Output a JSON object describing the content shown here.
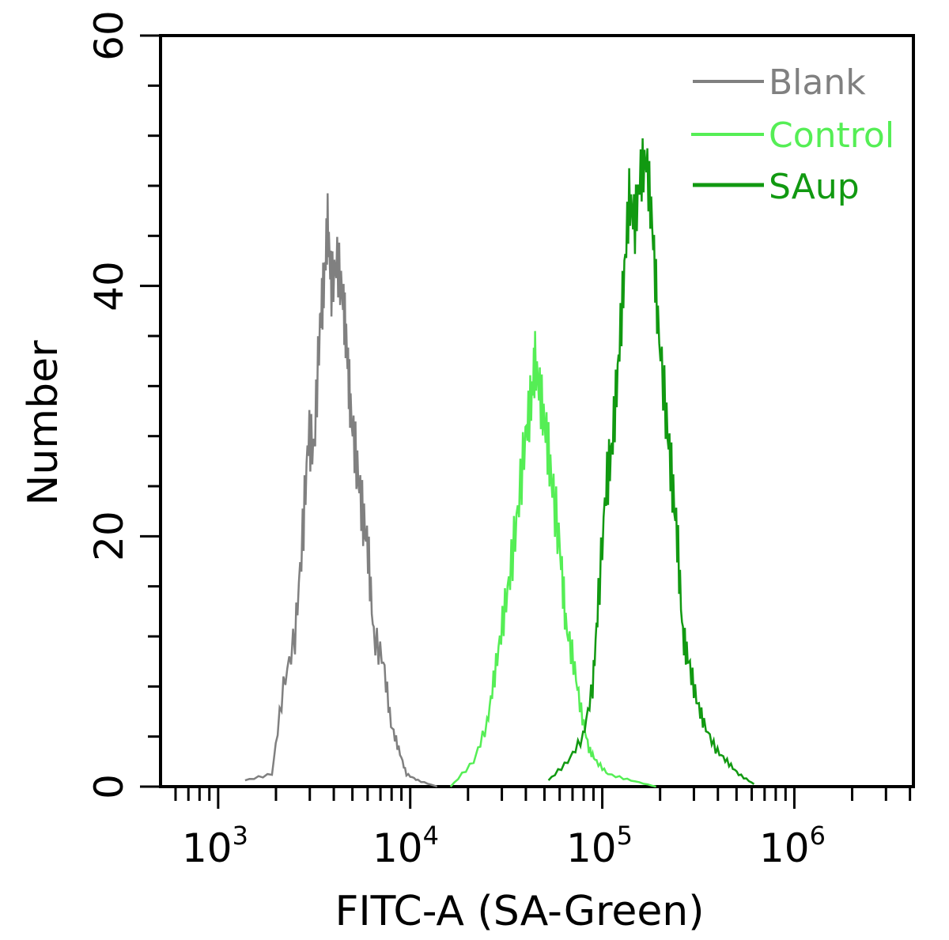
{
  "chart_data": {
    "type": "line",
    "title": "",
    "xlabel": "FITC-A (SA-Green)",
    "ylabel": "Number",
    "x_scale": "log",
    "xlim_log10": [
      2.7,
      6.62
    ],
    "ylim": [
      0,
      60
    ],
    "xticks": [
      {
        "base": "10",
        "exp": "3"
      },
      {
        "base": "10",
        "exp": "4"
      },
      {
        "base": "10",
        "exp": "5"
      },
      {
        "base": "10",
        "exp": "6"
      }
    ],
    "xtick_values_log10": [
      3,
      4,
      5,
      6
    ],
    "yticks": [
      "0",
      "20",
      "40",
      "60"
    ],
    "ytick_values": [
      0,
      20,
      40,
      60
    ],
    "grid": false,
    "legend_position": "top-right",
    "series": [
      {
        "name": "Blank",
        "color": "#808080",
        "log10_x": [
          3.14,
          3.28,
          3.34,
          3.4,
          3.44,
          3.47,
          3.5,
          3.53,
          3.55,
          3.57,
          3.59,
          3.62,
          3.65,
          3.67,
          3.69,
          3.72,
          3.75,
          3.78,
          3.81,
          3.86,
          3.9,
          3.94,
          3.98,
          4.04,
          4.14
        ],
        "y": [
          0.5,
          1,
          8,
          12,
          20,
          28,
          27,
          37,
          40,
          45,
          40,
          42,
          39,
          35,
          30,
          26,
          22,
          19,
          12,
          10,
          5,
          3,
          1,
          0.5,
          0
        ]
      },
      {
        "name": "Control",
        "color": "#55ee55",
        "log10_x": [
          4.21,
          4.33,
          4.4,
          4.44,
          4.48,
          4.52,
          4.56,
          4.6,
          4.63,
          4.65,
          4.68,
          4.71,
          4.74,
          4.78,
          4.81,
          4.85,
          4.89,
          4.93,
          4.97,
          5.03,
          5.15,
          5.28
        ],
        "y": [
          0,
          2,
          5,
          9,
          13,
          17,
          22,
          28,
          31,
          34,
          31,
          28,
          24,
          19,
          13,
          10,
          6,
          3,
          2,
          1,
          0.5,
          0
        ]
      },
      {
        "name": "SAup",
        "color": "#119911",
        "log10_x": [
          4.72,
          4.82,
          4.9,
          4.95,
          4.98,
          5.02,
          5.05,
          5.08,
          5.11,
          5.14,
          5.17,
          5.2,
          5.23,
          5.26,
          5.29,
          5.33,
          5.36,
          5.39,
          5.42,
          5.45,
          5.49,
          5.53,
          5.59,
          5.65,
          5.71,
          5.79
        ],
        "y": [
          0.5,
          2,
          4,
          8,
          15,
          24,
          27,
          33,
          40,
          47,
          45,
          49,
          50,
          45,
          37,
          30,
          25,
          20,
          12,
          10,
          7,
          5,
          3,
          2,
          1,
          0.2
        ]
      }
    ]
  }
}
